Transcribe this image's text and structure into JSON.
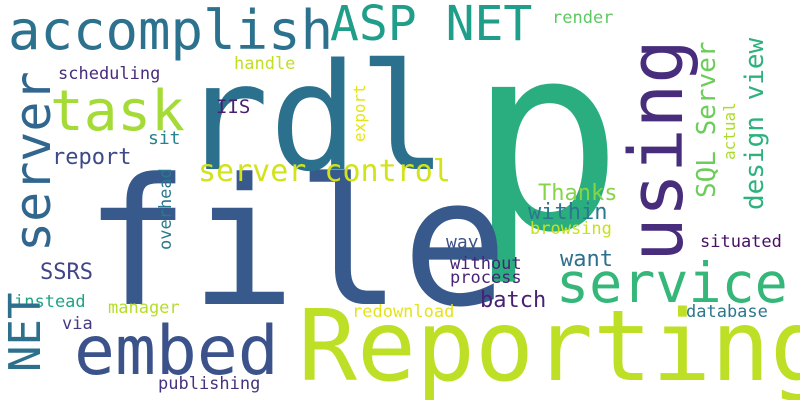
{
  "words": [
    {
      "id": "p",
      "text": "p",
      "color": "#2aae7f"
    },
    {
      "id": "file",
      "text": "file",
      "color": "#38598c"
    },
    {
      "id": "reporting",
      "text": "Reporting",
      "color": "#bddf26"
    },
    {
      "id": "rdl",
      "text": "rdl",
      "color": "#2b718e"
    },
    {
      "id": "using",
      "text": "using",
      "color": "#472d7b"
    },
    {
      "id": "embed",
      "text": "embed",
      "color": "#3b528b"
    },
    {
      "id": "service",
      "text": "service",
      "color": "#35b779"
    },
    {
      "id": "server",
      "text": "server",
      "color": "#31668e"
    },
    {
      "id": "accomplish",
      "text": "accomplish",
      "color": "#2c728e"
    },
    {
      "id": "asp-net",
      "text": "ASP NET",
      "color": "#1f9e89"
    },
    {
      "id": "task",
      "text": "task",
      "color": "#a5db36"
    },
    {
      "id": "net",
      "text": "NET",
      "color": "#2d708e"
    },
    {
      "id": "server-control",
      "text": "server control",
      "color": "#d2e21b"
    },
    {
      "id": "design-view",
      "text": "design view",
      "color": "#2db27d"
    },
    {
      "id": "sql-server",
      "text": "SQL Server",
      "color": "#6ccd5a"
    },
    {
      "id": "within",
      "text": "within",
      "color": "#2a788e"
    },
    {
      "id": "thanks",
      "text": "Thanks",
      "color": "#86d549"
    },
    {
      "id": "want",
      "text": "want",
      "color": "#2d708e"
    },
    {
      "id": "batch",
      "text": "batch",
      "color": "#482173"
    },
    {
      "id": "report",
      "text": "report",
      "color": "#3e4989"
    },
    {
      "id": "ssrs",
      "text": "SSRS",
      "color": "#414487"
    },
    {
      "id": "scheduling",
      "text": "scheduling",
      "color": "#472d7b"
    },
    {
      "id": "handle",
      "text": "handle",
      "color": "#c0df25"
    },
    {
      "id": "iis",
      "text": "IIS",
      "color": "#481f70"
    },
    {
      "id": "export",
      "text": "export",
      "color": "#e5e419"
    },
    {
      "id": "sit",
      "text": "sit",
      "color": "#26828e"
    },
    {
      "id": "actual",
      "text": "actual",
      "color": "#addc30"
    },
    {
      "id": "render",
      "text": "render",
      "color": "#5ec962"
    },
    {
      "id": "overhead",
      "text": "overhead",
      "color": "#2a788e"
    },
    {
      "id": "browsing",
      "text": "browsing",
      "color": "#c8e020"
    },
    {
      "id": "way",
      "text": "way",
      "color": "#3b528b"
    },
    {
      "id": "without",
      "text": "without",
      "color": "#482475"
    },
    {
      "id": "process",
      "text": "process",
      "color": "#482475"
    },
    {
      "id": "situated",
      "text": "situated",
      "color": "#471063"
    },
    {
      "id": "instead",
      "text": "instead",
      "color": "#20a486"
    },
    {
      "id": "manager",
      "text": "manager",
      "color": "#b5de2b"
    },
    {
      "id": "redownload",
      "text": "redownload",
      "color": "#e5e419"
    },
    {
      "id": "database",
      "text": "database",
      "color": "#2a788e"
    },
    {
      "id": "via",
      "text": "via",
      "color": "#443a83"
    },
    {
      "id": "publishing",
      "text": "publishing",
      "color": "#46337f"
    }
  ]
}
